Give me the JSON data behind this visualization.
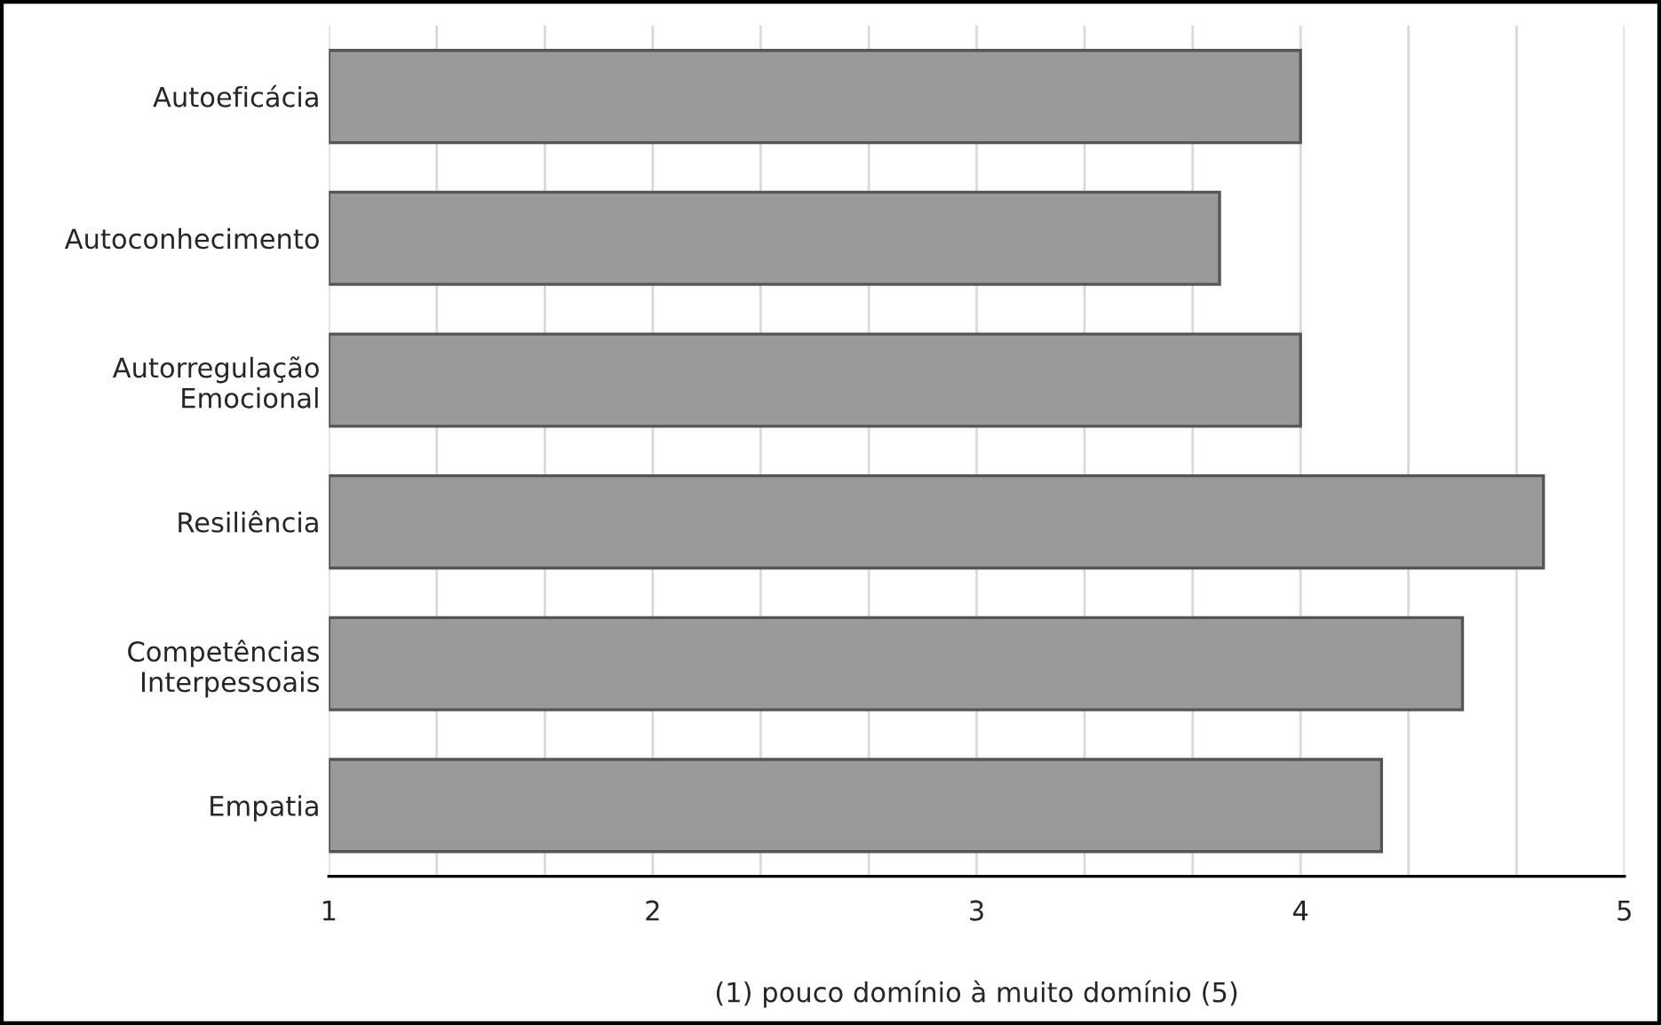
{
  "chart_data": {
    "type": "bar",
    "orientation": "horizontal",
    "xlabel": "(1) pouco domínio à muito domínio (5)",
    "categories": [
      "Autoeficácia",
      "Autoconhecimento",
      "Autorregulação\nEmocional",
      "Resiliência",
      "Competências\nInterpessoais",
      "Empatia"
    ],
    "values": [
      4,
      3.75,
      4,
      4.75,
      4.5,
      4.25
    ],
    "color": "#999999",
    "xlim": [
      1,
      5
    ],
    "xticks": [
      1,
      {
        "value": 1.333,
        "label": null
      },
      {
        "value": 1.667,
        "label": null
      },
      2,
      {
        "value": 2.333,
        "label": null
      },
      {
        "value": 2.667,
        "label": null
      },
      3,
      {
        "value": 3.333,
        "label": null
      },
      {
        "value": 3.667,
        "label": null
      },
      4,
      {
        "value": 4.333,
        "label": null
      },
      {
        "value": 4.667,
        "label": null
      },
      5
    ],
    "grid": "x",
    "legend": false
  }
}
